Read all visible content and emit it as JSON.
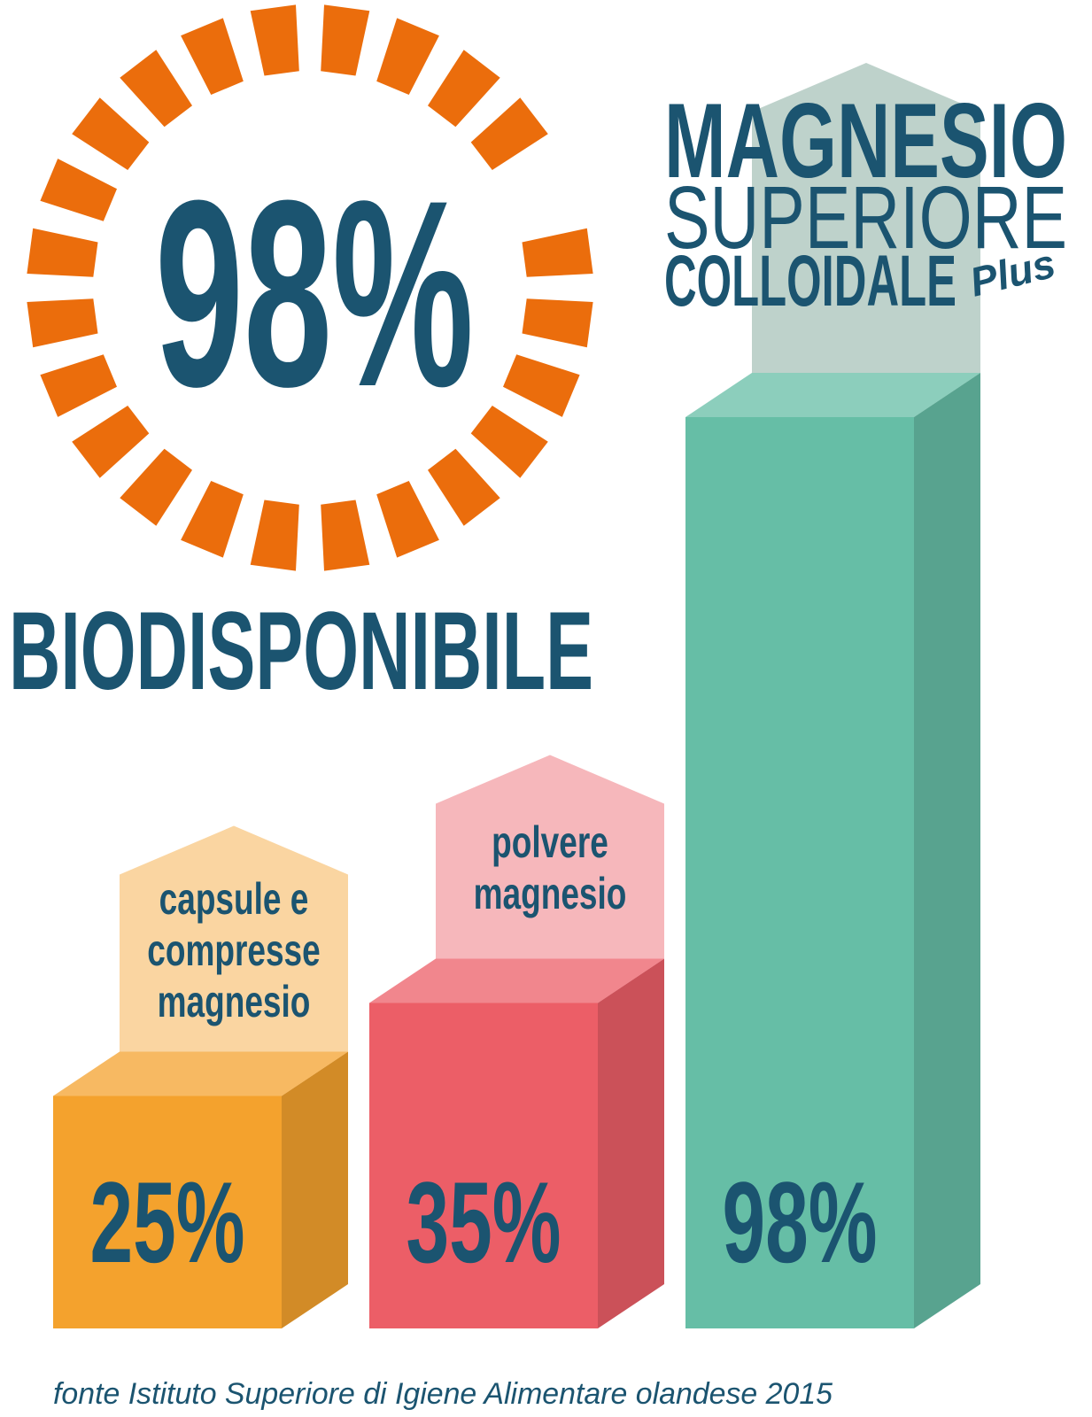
{
  "chart_data": {
    "type": "bar",
    "headline": "98%",
    "headline_label": "BIODISPONIBILE",
    "title": [
      "MAGNESIO",
      "SUPERIORE",
      "COLLOIDALE",
      "Plus"
    ],
    "categories": [
      "capsule e compresse magnesio",
      "polvere magnesio",
      null
    ],
    "values": [
      25,
      35,
      98
    ],
    "value_labels": [
      "25%",
      "35%",
      "98%"
    ],
    "colors": [
      "#f4a22d",
      "#ec5e67",
      "#66bea6"
    ],
    "ylim": [
      0,
      100
    ],
    "source": "fonte Istituto Superiore di Igiene Alimentare olandese 2015"
  }
}
